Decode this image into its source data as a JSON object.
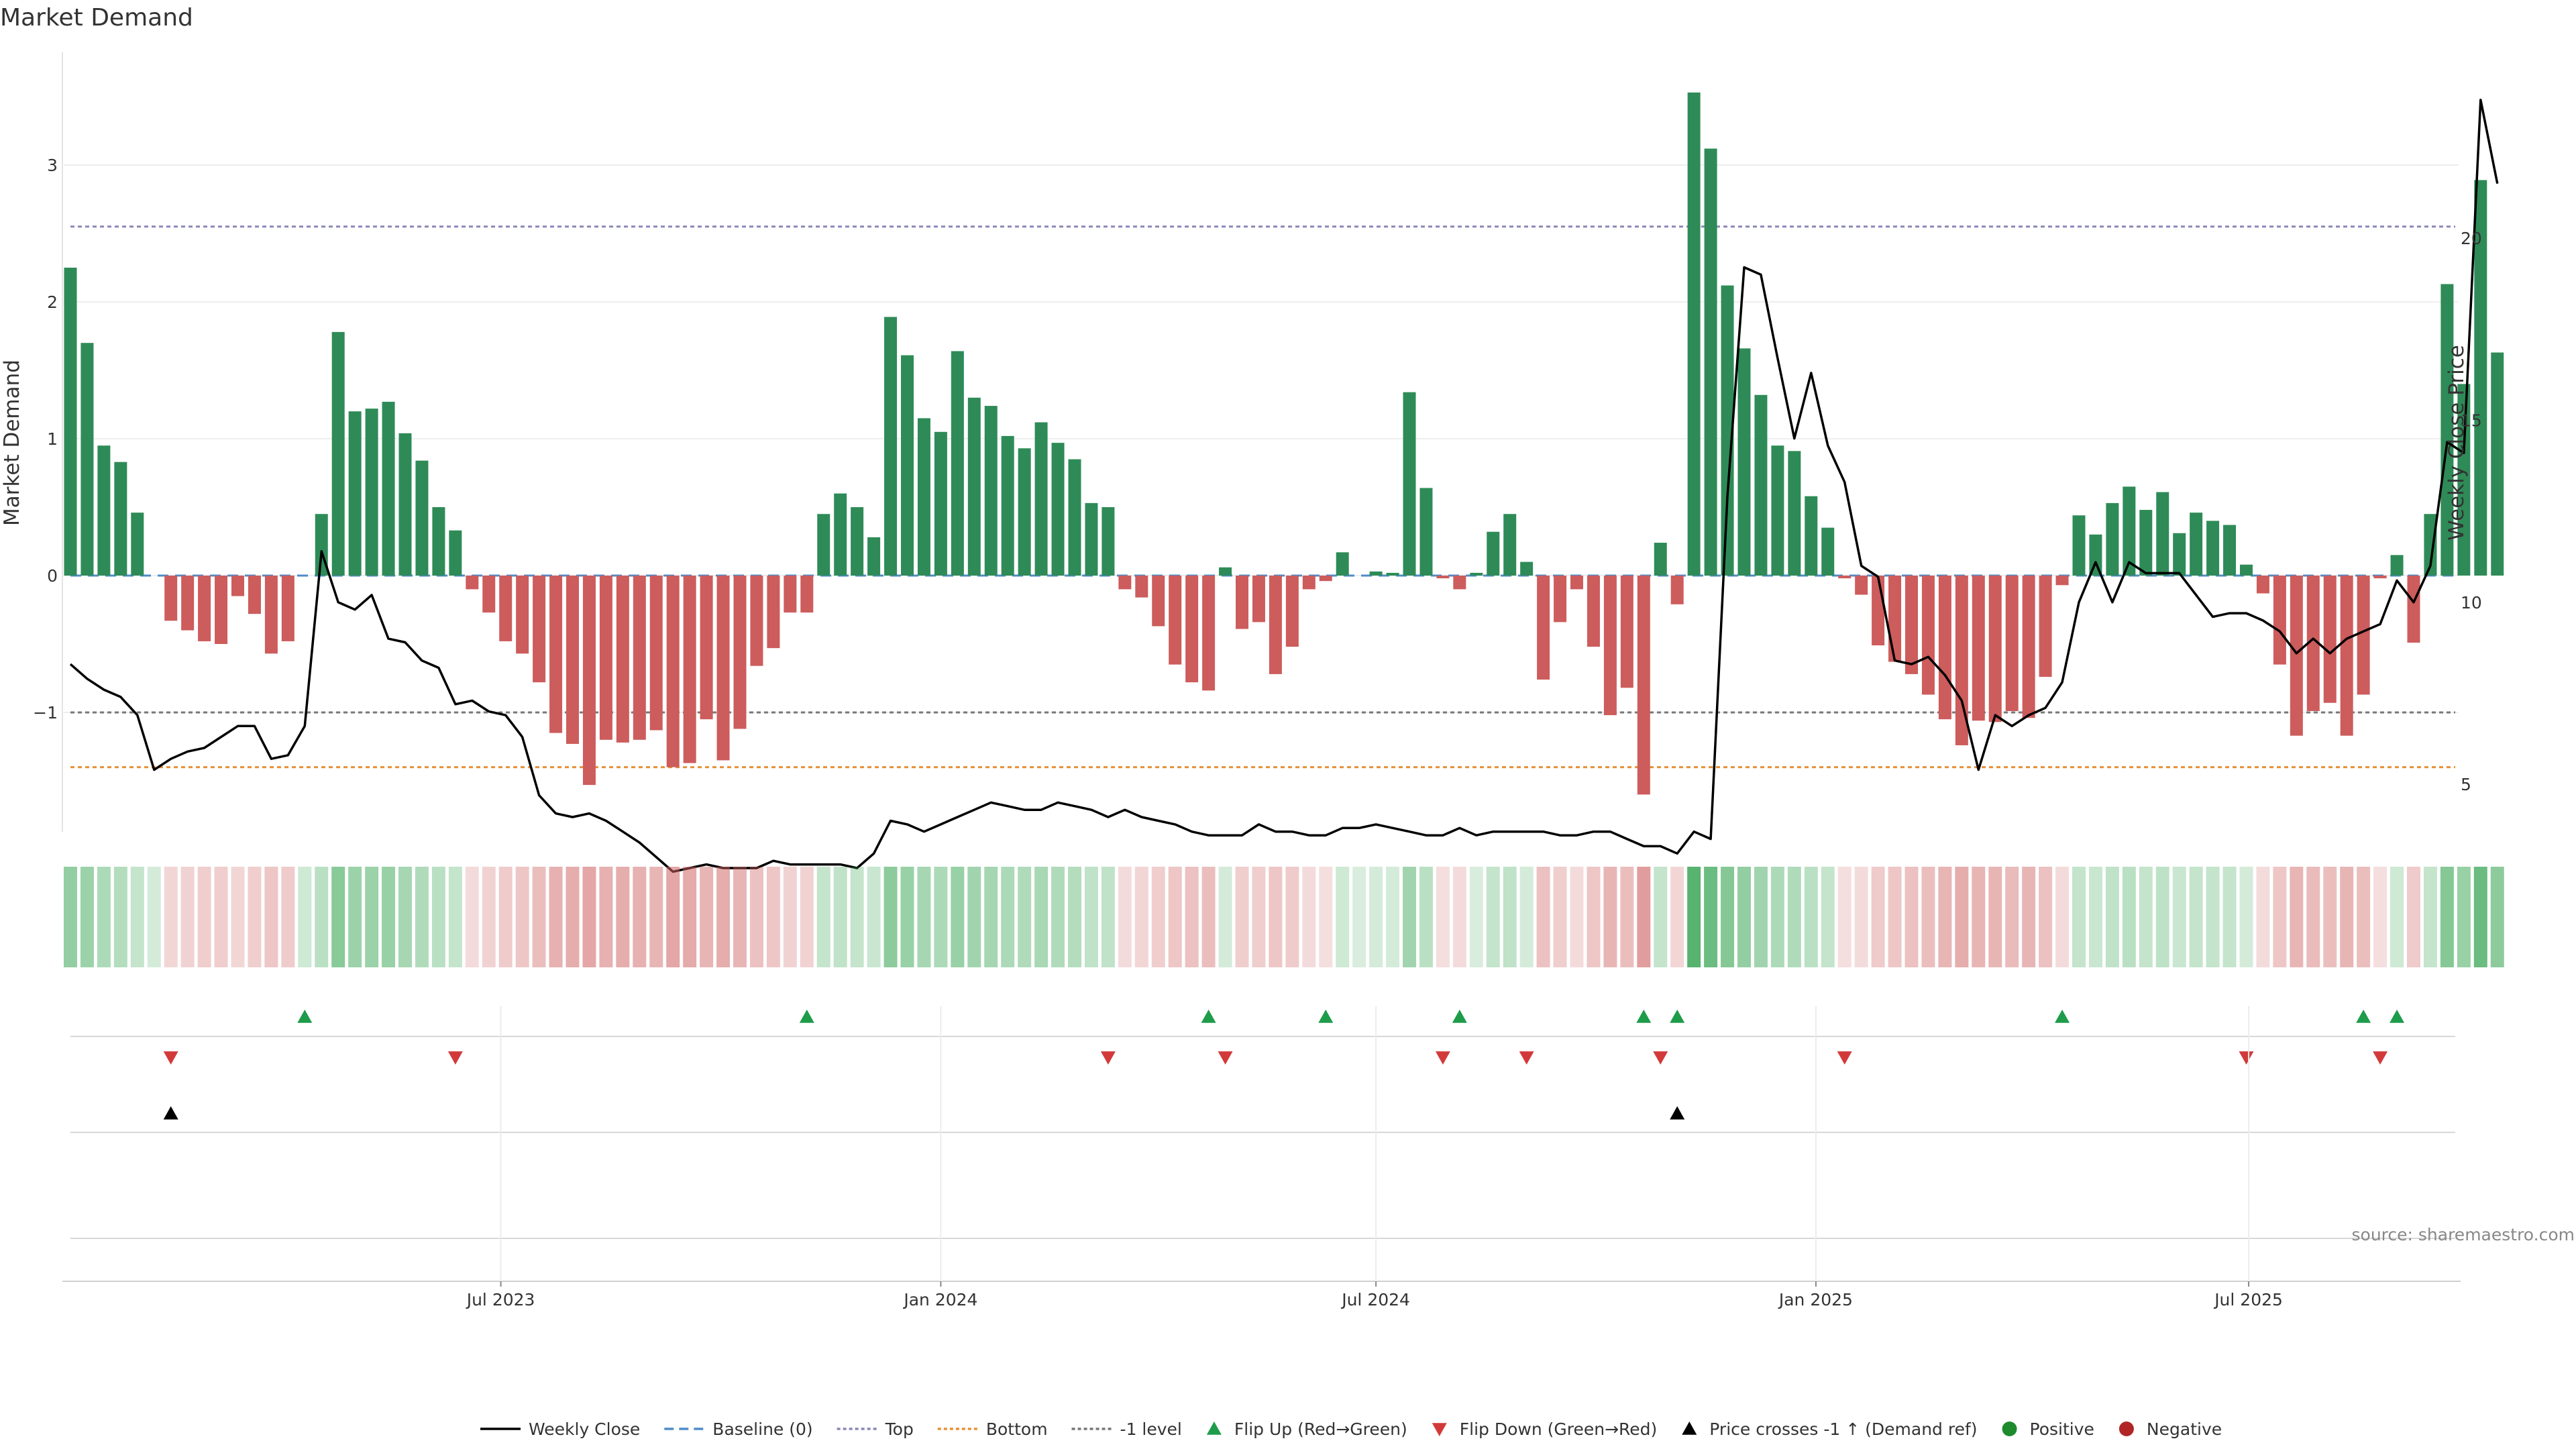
{
  "chart_data": {
    "type": "bar",
    "title": "Market Demand",
    "ylabel_left": "Market Demand",
    "ylabel_right": "Weekly Close Price",
    "ylim_left": [
      -1.9,
      3.8
    ],
    "ylim_right": [
      2.4,
      25.0
    ],
    "yticks_left": [
      3,
      2,
      1,
      0,
      -1
    ],
    "yticks_right": [
      20,
      15,
      10,
      5
    ],
    "x_dates": {
      "start": "2023-01-02",
      "interval_days": 7
    },
    "x_tick_labels": [
      {
        "label": "Jul 2023",
        "date": "2023-07-01"
      },
      {
        "label": "Jan 2024",
        "date": "2024-01-01"
      },
      {
        "label": "Jul 2024",
        "date": "2024-07-01"
      },
      {
        "label": "Jan 2025",
        "date": "2025-01-01"
      },
      {
        "label": "Jul 2025",
        "date": "2025-07-01"
      }
    ],
    "reference_lines": {
      "top": 2.55,
      "bottom": -1.4,
      "minus_one": -1.0,
      "baseline": 0.0
    },
    "demand": [
      2.25,
      1.7,
      0.95,
      0.83,
      0.46,
      0.0,
      -0.33,
      -0.4,
      -0.48,
      -0.5,
      -0.15,
      -0.28,
      -0.57,
      -0.48,
      0.0,
      0.45,
      1.78,
      1.2,
      1.22,
      1.27,
      1.04,
      0.84,
      0.5,
      0.33,
      -0.1,
      -0.27,
      -0.48,
      -0.57,
      -0.78,
      -1.15,
      -1.23,
      -1.53,
      -1.2,
      -1.22,
      -1.2,
      -1.13,
      -1.4,
      -1.37,
      -1.05,
      -1.35,
      -1.12,
      -0.66,
      -0.53,
      -0.27,
      -0.27,
      0.45,
      0.6,
      0.5,
      0.28,
      1.89,
      1.61,
      1.15,
      1.05,
      1.64,
      1.3,
      1.24,
      1.02,
      0.93,
      1.12,
      0.97,
      0.85,
      0.53,
      0.5,
      -0.1,
      -0.16,
      -0.37,
      -0.65,
      -0.78,
      -0.84,
      0.06,
      -0.39,
      -0.34,
      -0.72,
      -0.52,
      -0.1,
      -0.04,
      0.17,
      0.0,
      0.03,
      0.02,
      1.34,
      0.64,
      -0.02,
      -0.1,
      0.02,
      0.32,
      0.45,
      0.1,
      -0.76,
      -0.34,
      -0.1,
      -0.52,
      -1.02,
      -0.82,
      -1.6,
      0.24,
      -0.21,
      3.53,
      3.12,
      2.12,
      1.66,
      1.32,
      0.95,
      0.91,
      0.58,
      0.35,
      -0.02,
      -0.14,
      -0.51,
      -0.63,
      -0.72,
      -0.87,
      -1.05,
      -1.24,
      -1.06,
      -1.07,
      -0.99,
      -1.04,
      -0.74,
      -0.07,
      0.44,
      0.3,
      0.53,
      0.65,
      0.48,
      0.61,
      0.31,
      0.46,
      0.4,
      0.37,
      0.08,
      -0.13,
      -0.65,
      -1.17,
      -0.99,
      -0.93,
      -1.17,
      -0.87,
      -0.02,
      0.15,
      -0.49,
      0.45,
      2.13,
      1.4,
      2.89,
      1.63
    ],
    "weekly_close": [
      8.3,
      7.9,
      7.6,
      7.4,
      6.9,
      5.4,
      5.7,
      5.9,
      6.0,
      6.3,
      6.6,
      6.6,
      5.7,
      5.8,
      6.6,
      11.4,
      10.0,
      9.8,
      10.2,
      9.0,
      8.9,
      8.4,
      8.2,
      7.2,
      7.3,
      7.0,
      6.9,
      6.3,
      4.7,
      4.2,
      4.1,
      4.2,
      4.0,
      3.7,
      3.4,
      3.0,
      2.6,
      2.7,
      2.8,
      2.7,
      2.7,
      2.7,
      2.9,
      2.8,
      2.8,
      2.8,
      2.8,
      2.7,
      3.1,
      4.0,
      3.9,
      3.7,
      3.9,
      4.1,
      4.3,
      4.5,
      4.4,
      4.3,
      4.3,
      4.5,
      4.4,
      4.3,
      4.1,
      4.3,
      4.1,
      4.0,
      3.9,
      3.7,
      3.6,
      3.6,
      3.6,
      3.9,
      3.7,
      3.7,
      3.6,
      3.6,
      3.8,
      3.8,
      3.9,
      3.8,
      3.7,
      3.6,
      3.6,
      3.8,
      3.6,
      3.7,
      3.7,
      3.7,
      3.7,
      3.6,
      3.6,
      3.7,
      3.7,
      3.5,
      3.3,
      3.3,
      3.1,
      3.7,
      3.5,
      12.9,
      19.2,
      19.0,
      16.7,
      14.5,
      16.3,
      14.3,
      13.3,
      11.0,
      10.7,
      8.4,
      8.3,
      8.5,
      8.0,
      7.3,
      5.4,
      6.9,
      6.6,
      6.9,
      7.1,
      7.8,
      10.0,
      11.1,
      10.0,
      11.1,
      10.8,
      10.8,
      10.8,
      10.2,
      9.6,
      9.7,
      9.7,
      9.5,
      9.2,
      8.6,
      9.0,
      8.6,
      9.0,
      9.2,
      9.4,
      10.6,
      10.0,
      11.0,
      14.4,
      14.1,
      23.8,
      21.5
    ],
    "heat_alpha": [
      0.55,
      0.5,
      0.42,
      0.38,
      0.3,
      0.22,
      0.25,
      0.28,
      0.3,
      0.3,
      0.25,
      0.3,
      0.35,
      0.32,
      0.25,
      0.35,
      0.6,
      0.5,
      0.5,
      0.52,
      0.45,
      0.4,
      0.35,
      0.3,
      0.22,
      0.28,
      0.32,
      0.35,
      0.4,
      0.48,
      0.5,
      0.55,
      0.48,
      0.5,
      0.48,
      0.45,
      0.55,
      0.52,
      0.45,
      0.5,
      0.45,
      0.38,
      0.35,
      0.28,
      0.28,
      0.3,
      0.32,
      0.3,
      0.28,
      0.58,
      0.52,
      0.45,
      0.42,
      0.52,
      0.48,
      0.46,
      0.42,
      0.4,
      0.44,
      0.4,
      0.38,
      0.32,
      0.32,
      0.22,
      0.25,
      0.3,
      0.35,
      0.38,
      0.4,
      0.22,
      0.3,
      0.3,
      0.35,
      0.32,
      0.22,
      0.2,
      0.25,
      0.2,
      0.22,
      0.22,
      0.48,
      0.35,
      0.2,
      0.22,
      0.2,
      0.3,
      0.32,
      0.22,
      0.38,
      0.3,
      0.22,
      0.35,
      0.45,
      0.4,
      0.6,
      0.3,
      0.25,
      0.85,
      0.75,
      0.62,
      0.55,
      0.48,
      0.42,
      0.4,
      0.35,
      0.3,
      0.2,
      0.22,
      0.32,
      0.35,
      0.38,
      0.4,
      0.45,
      0.5,
      0.45,
      0.45,
      0.42,
      0.45,
      0.38,
      0.22,
      0.3,
      0.28,
      0.32,
      0.35,
      0.3,
      0.33,
      0.28,
      0.3,
      0.3,
      0.3,
      0.22,
      0.22,
      0.35,
      0.45,
      0.42,
      0.4,
      0.45,
      0.4,
      0.2,
      0.25,
      0.32,
      0.3,
      0.62,
      0.52,
      0.75,
      0.58
    ],
    "flip_up_weeks": [
      14,
      44,
      68,
      75,
      83,
      94,
      96,
      119,
      137,
      139
    ],
    "flip_down_weeks": [
      6,
      23,
      62,
      69,
      82,
      87,
      95,
      106,
      130,
      138
    ],
    "price_cross_weeks": [
      6,
      96
    ],
    "legend": [
      {
        "label": "Weekly Close",
        "kind": "line",
        "color": "#000000"
      },
      {
        "label": "Baseline (0)",
        "kind": "dash",
        "color": "#4f8cc9"
      },
      {
        "label": "Top",
        "kind": "dot",
        "color": "#8a87b8"
      },
      {
        "label": "Bottom",
        "kind": "dot",
        "color": "#e69138"
      },
      {
        "label": "-1 level",
        "kind": "dot",
        "color": "#777777"
      },
      {
        "label": "Flip Up (Red→Green)",
        "kind": "tri-up",
        "color": "#1e9c4a"
      },
      {
        "label": "Flip Down (Green→Red)",
        "kind": "tri-down",
        "color": "#d23a3a"
      },
      {
        "label": "Price crosses -1 ↑ (Demand ref)",
        "kind": "tri-up",
        "color": "#000000"
      },
      {
        "label": "Positive",
        "kind": "dot-marker",
        "color": "#1e8a2e"
      },
      {
        "label": "Negative",
        "kind": "dot-marker",
        "color": "#b02626"
      }
    ],
    "source": "source: sharemaestro.com",
    "colors": {
      "positive": "#2e8b57",
      "negative": "#cd5c5c",
      "heat_positive": "#3aa655",
      "heat_negative": "#cd5c5c"
    }
  }
}
